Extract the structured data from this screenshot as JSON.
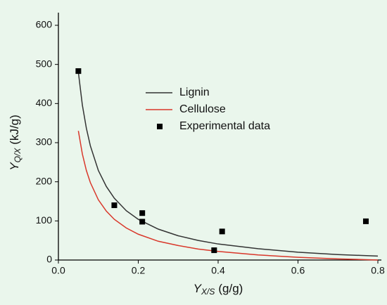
{
  "chart_data": {
    "type": "line",
    "x_label": {
      "main": "Y",
      "sub": "X/S",
      "unit": "(g/g)"
    },
    "y_label": {
      "main": "Y",
      "sub": "Q/X",
      "unit": "(kJ/g)"
    },
    "xlim": [
      0,
      0.8
    ],
    "xticks": [
      {
        "value": 0,
        "label": "0.0"
      },
      0.2,
      0.4,
      0.6,
      0.8
    ],
    "ylim": [
      0,
      600
    ],
    "yticks": [
      0,
      100,
      200,
      300,
      400,
      500,
      600
    ],
    "series": [
      {
        "name": "Lignin",
        "color": "#333333",
        "style": "line",
        "x": [
          0.05,
          0.06,
          0.07,
          0.08,
          0.1,
          0.12,
          0.14,
          0.17,
          0.2,
          0.25,
          0.3,
          0.35,
          0.4,
          0.5,
          0.6,
          0.7,
          0.8
        ],
        "values": [
          480,
          396,
          337,
          292,
          229,
          188,
          158,
          126,
          104,
          79,
          62,
          50,
          41,
          29,
          20,
          14,
          10
        ]
      },
      {
        "name": "Cellulose",
        "color": "#d9372a",
        "style": "line",
        "x": [
          0.05,
          0.06,
          0.07,
          0.08,
          0.1,
          0.12,
          0.14,
          0.17,
          0.2,
          0.25,
          0.3,
          0.35,
          0.4,
          0.5,
          0.6,
          0.7,
          0.8
        ],
        "values": [
          330,
          271,
          229,
          198,
          154,
          125,
          104,
          82,
          66,
          48,
          37,
          28,
          22,
          13,
          7,
          3,
          0
        ]
      },
      {
        "name": "Experimental data",
        "color": "#000000",
        "style": "scatter",
        "x": [
          0.05,
          0.14,
          0.21,
          0.21,
          0.39,
          0.41,
          0.77
        ],
        "values": [
          483,
          140,
          120,
          98,
          25,
          73,
          99
        ]
      }
    ],
    "legend": "upper-center"
  }
}
